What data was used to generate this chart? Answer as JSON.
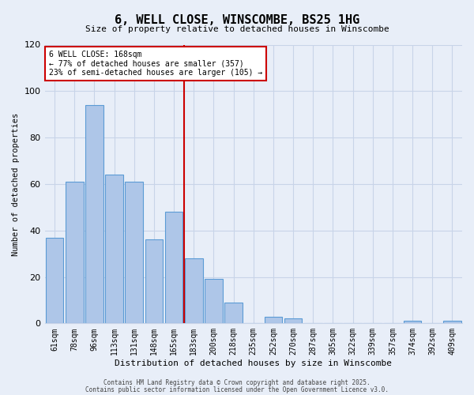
{
  "title": "6, WELL CLOSE, WINSCOMBE, BS25 1HG",
  "subtitle": "Size of property relative to detached houses in Winscombe",
  "xlabel": "Distribution of detached houses by size in Winscombe",
  "ylabel": "Number of detached properties",
  "bin_labels": [
    "61sqm",
    "78sqm",
    "96sqm",
    "113sqm",
    "131sqm",
    "148sqm",
    "165sqm",
    "183sqm",
    "200sqm",
    "218sqm",
    "235sqm",
    "252sqm",
    "270sqm",
    "287sqm",
    "305sqm",
    "322sqm",
    "339sqm",
    "357sqm",
    "374sqm",
    "392sqm",
    "409sqm"
  ],
  "bar_values": [
    37,
    61,
    94,
    64,
    61,
    36,
    48,
    28,
    19,
    9,
    0,
    3,
    2,
    0,
    0,
    0,
    0,
    0,
    1,
    0,
    1
  ],
  "bar_color": "#aec6e8",
  "bar_edge_color": "#5b9bd5",
  "vline_x_index": 6,
  "vline_color": "#cc0000",
  "ylim": [
    0,
    120
  ],
  "yticks": [
    0,
    20,
    40,
    60,
    80,
    100,
    120
  ],
  "annotation_title": "6 WELL CLOSE: 168sqm",
  "annotation_line1": "← 77% of detached houses are smaller (357)",
  "annotation_line2": "23% of semi-detached houses are larger (105) →",
  "annotation_box_color": "#cc0000",
  "footer1": "Contains HM Land Registry data © Crown copyright and database right 2025.",
  "footer2": "Contains public sector information licensed under the Open Government Licence v3.0.",
  "background_color": "#e8eef8",
  "grid_color": "#c8d4e8"
}
